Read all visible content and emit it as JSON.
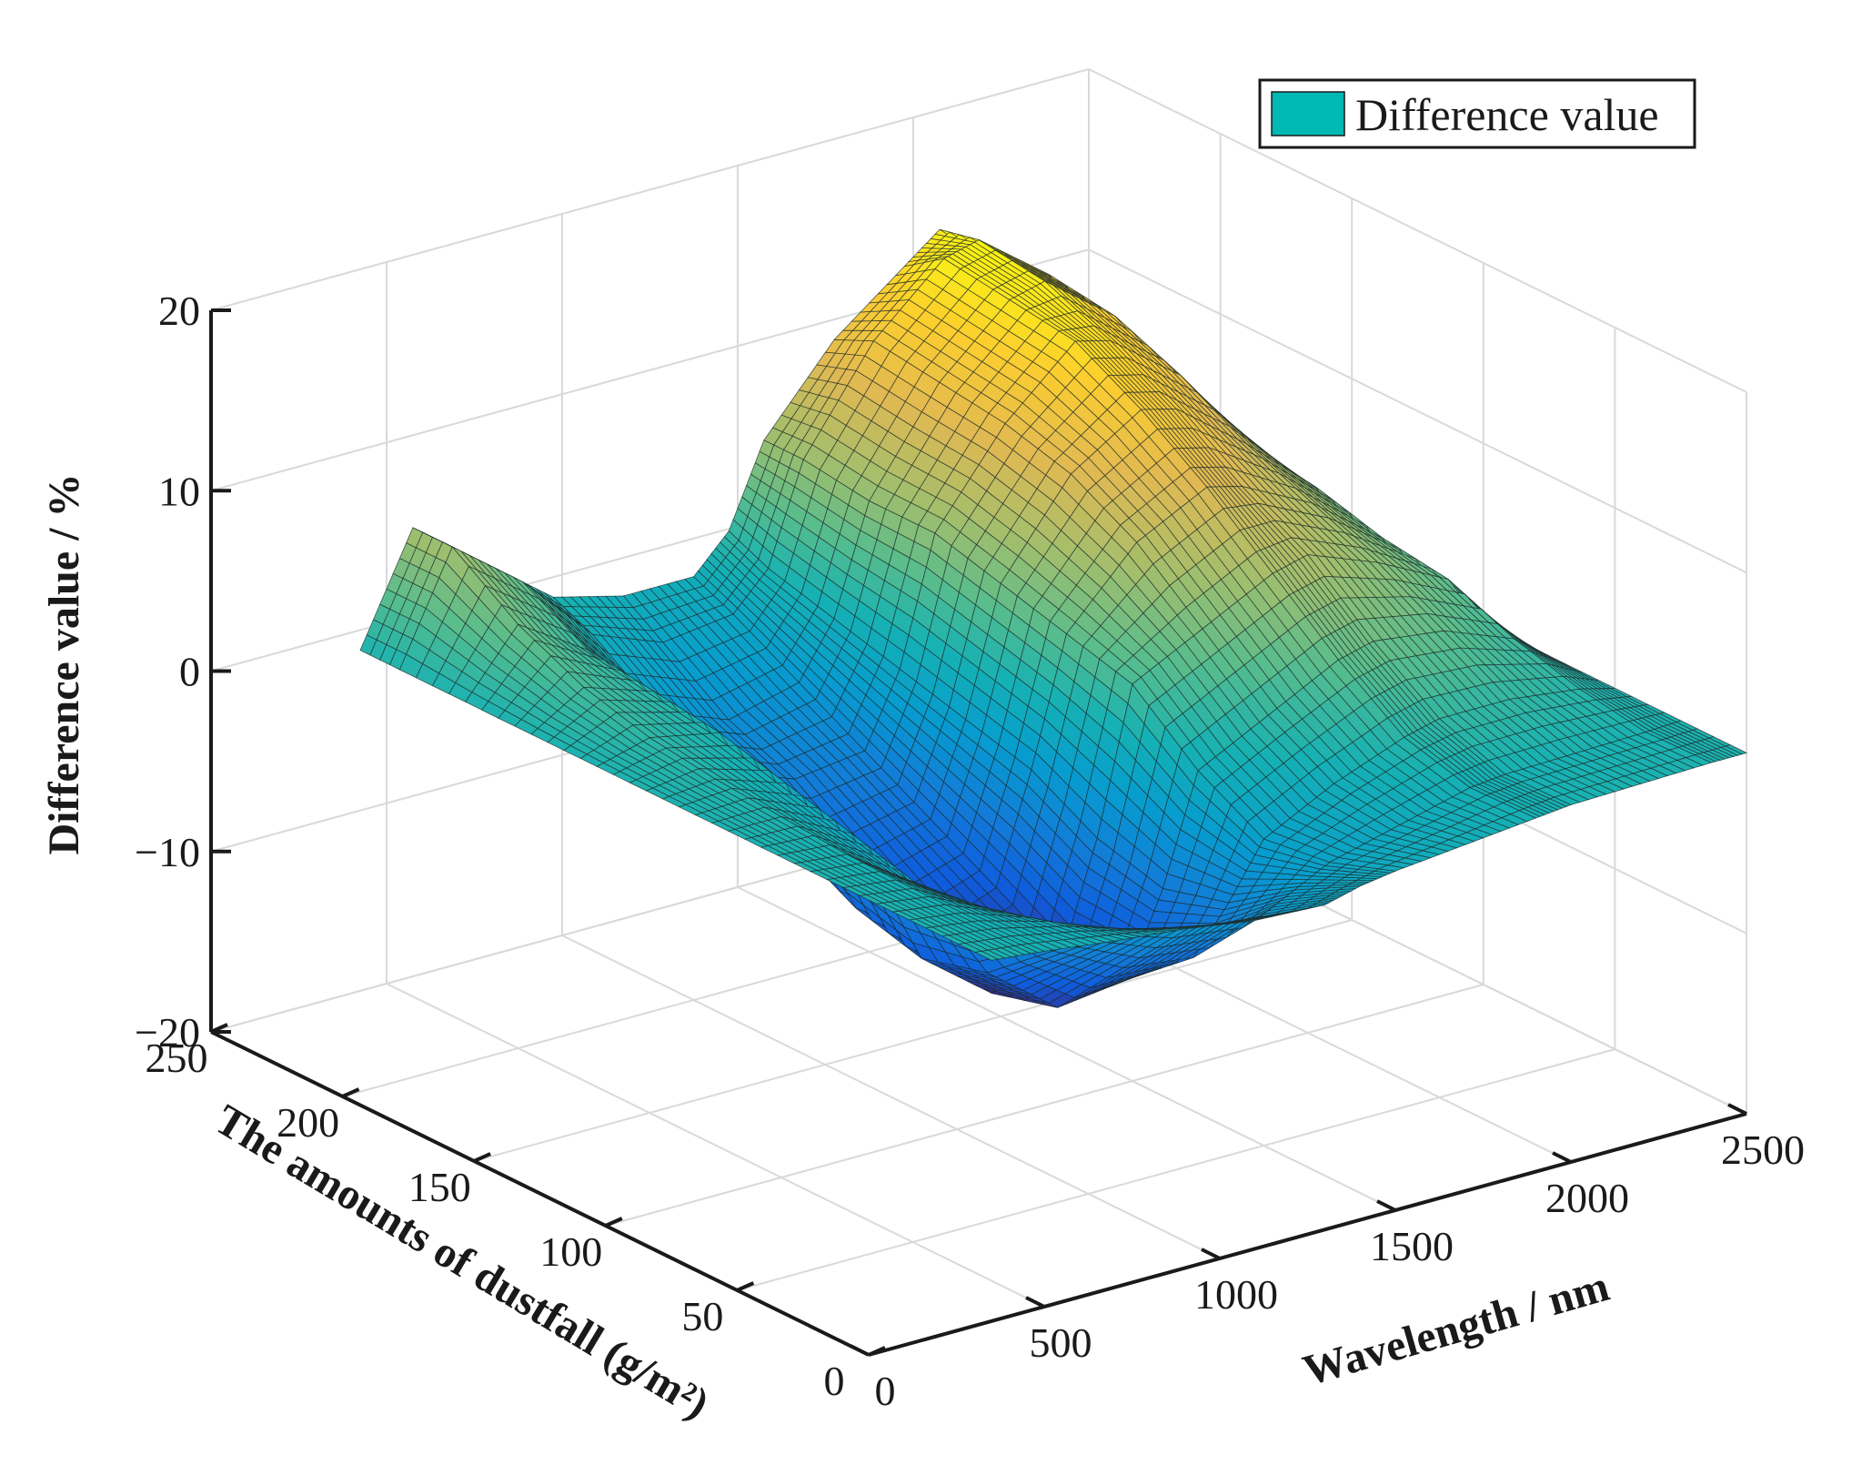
{
  "chart_data": {
    "type": "surface",
    "title": "",
    "xlabel": "Wavelength / nm",
    "ylabel": "The amounts of dustfall (g/m²)",
    "zlabel": "Difference value / %",
    "xlim": [
      0,
      2500
    ],
    "ylim": [
      0,
      250
    ],
    "zlim": [
      -20,
      20
    ],
    "x_ticks": [
      "0",
      "500",
      "1000",
      "1500",
      "2000",
      "2500"
    ],
    "y_ticks": [
      "0",
      "50",
      "100",
      "150",
      "200",
      "250"
    ],
    "z_ticks": [
      "−20",
      "−10",
      "0",
      "10",
      "20"
    ],
    "grid": true,
    "legend": {
      "label": "Difference value",
      "color": "#00b8b4",
      "position": "top-right"
    },
    "colormap": "parula",
    "series": [
      {
        "name": "Difference value",
        "wavelength_nm": [
          350,
          500,
          700,
          900,
          1100,
          1300,
          1400,
          1500,
          1700,
          1900,
          2000,
          2200,
          2400,
          2500
        ],
        "dustfall_g_per_m2": [
          0,
          25,
          50,
          75,
          100,
          125,
          150,
          175,
          200,
          225,
          240
        ],
        "z_percent": [
          [
            0.0,
            -0.3,
            -0.8,
            -1.2,
            -1.8,
            -2.0,
            -1.5,
            -1.2,
            -0.8,
            -0.4,
            -0.2,
            -0.1,
            0.0,
            0.0
          ],
          [
            0.0,
            -0.4,
            -1.5,
            -3.0,
            -4.0,
            -4.5,
            -3.5,
            -2.5,
            -1.5,
            -0.5,
            -0.3,
            -0.2,
            -0.1,
            0.0
          ],
          [
            0.0,
            -0.4,
            -2.5,
            -6.0,
            -8.0,
            -8.5,
            -6.0,
            -3.0,
            -1.0,
            0.5,
            1.0,
            1.0,
            0.5,
            0.0
          ],
          [
            0.0,
            -0.3,
            -3.0,
            -9.0,
            -12.0,
            -11.5,
            -7.0,
            -1.0,
            1.0,
            3.0,
            3.5,
            3.0,
            1.5,
            0.0
          ],
          [
            0.0,
            0.0,
            -2.0,
            -10.0,
            -13.0,
            -12.0,
            -6.0,
            2.0,
            4.0,
            6.0,
            6.5,
            5.0,
            3.0,
            0.0
          ],
          [
            0.0,
            0.3,
            -1.0,
            -9.0,
            -11.5,
            -10.0,
            -4.0,
            3.0,
            7.0,
            9.0,
            8.5,
            6.5,
            3.5,
            0.0
          ],
          [
            0.0,
            0.8,
            0.0,
            -7.0,
            -9.0,
            -8.0,
            -3.0,
            4.0,
            9.0,
            11.5,
            11.0,
            8.0,
            4.5,
            0.0
          ],
          [
            0.0,
            1.8,
            0.5,
            -5.0,
            -6.5,
            -6.0,
            -2.0,
            5.0,
            10.0,
            13.5,
            13.0,
            10.0,
            5.0,
            0.0
          ],
          [
            0.0,
            3.5,
            1.0,
            -3.5,
            -5.0,
            -4.0,
            -1.0,
            5.0,
            10.5,
            14.0,
            14.5,
            11.5,
            6.0,
            0.0
          ],
          [
            0.0,
            6.0,
            3.0,
            -1.0,
            -2.5,
            -2.0,
            0.0,
            5.5,
            11.0,
            14.5,
            15.0,
            12.0,
            6.0,
            0.0
          ],
          [
            0.0,
            6.0,
            3.0,
            0.0,
            -1.0,
            -1.0,
            1.0,
            5.5,
            10.0,
            13.0,
            14.5,
            11.0,
            5.5,
            0.0
          ]
        ]
      }
    ]
  }
}
